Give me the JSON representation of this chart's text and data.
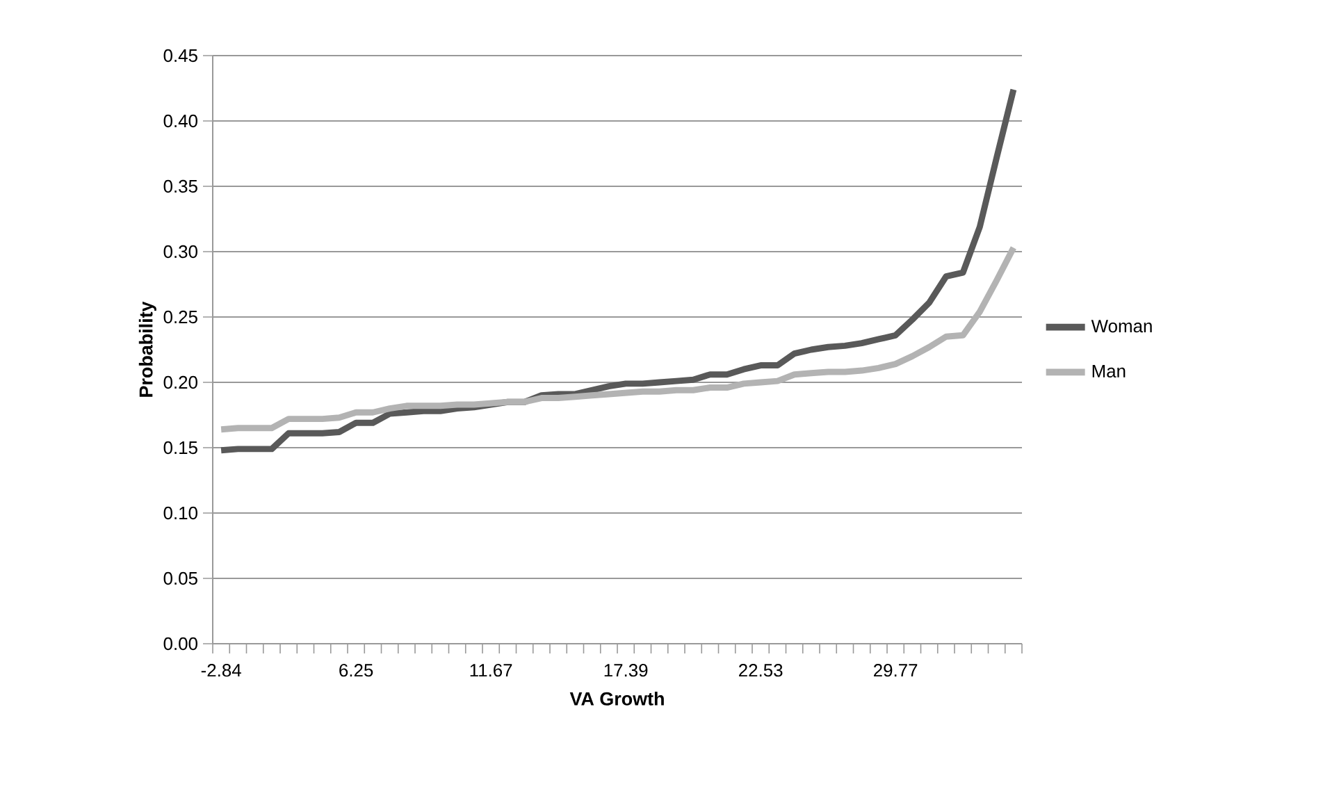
{
  "chart_data": {
    "type": "line",
    "xlabel": "VA Growth",
    "ylabel": "Probability",
    "categories": [
      "-2.84",
      null,
      null,
      null,
      null,
      null,
      null,
      null,
      "6.25",
      null,
      null,
      null,
      null,
      null,
      null,
      null,
      "11.67",
      null,
      null,
      null,
      null,
      null,
      null,
      null,
      "17.39",
      null,
      null,
      null,
      null,
      null,
      null,
      null,
      "22.53",
      null,
      null,
      null,
      null,
      null,
      null,
      null,
      "29.77",
      null,
      null,
      null,
      null,
      null,
      null,
      null
    ],
    "series": [
      {
        "name": "Woman",
        "color": "#595959",
        "values": [
          0.148,
          0.149,
          0.149,
          0.149,
          0.161,
          0.161,
          0.161,
          0.162,
          0.169,
          0.169,
          0.176,
          0.177,
          0.178,
          0.178,
          0.18,
          0.181,
          0.183,
          0.185,
          0.185,
          0.19,
          0.191,
          0.191,
          0.194,
          0.197,
          0.199,
          0.199,
          0.2,
          0.201,
          0.202,
          0.206,
          0.206,
          0.21,
          0.213,
          0.213,
          0.222,
          0.225,
          0.227,
          0.228,
          0.23,
          0.233,
          0.236,
          0.248,
          0.261,
          0.281,
          0.284,
          0.319,
          0.372,
          0.424
        ]
      },
      {
        "name": "Man",
        "color": "#b3b3b3",
        "values": [
          0.164,
          0.165,
          0.165,
          0.165,
          0.172,
          0.172,
          0.172,
          0.173,
          0.177,
          0.177,
          0.18,
          0.182,
          0.182,
          0.182,
          0.183,
          0.183,
          0.184,
          0.185,
          0.185,
          0.188,
          0.188,
          0.189,
          0.19,
          0.191,
          0.192,
          0.193,
          0.193,
          0.194,
          0.194,
          0.196,
          0.196,
          0.199,
          0.2,
          0.201,
          0.206,
          0.207,
          0.208,
          0.208,
          0.209,
          0.211,
          0.214,
          0.22,
          0.227,
          0.235,
          0.236,
          0.254,
          0.278,
          0.303
        ]
      }
    ],
    "ylim": [
      0,
      0.45
    ],
    "yticks": [
      {
        "value": 0,
        "label": "0.00"
      },
      {
        "value": 0.05,
        "label": "0.05"
      },
      {
        "value": 0.1,
        "label": "0.10"
      },
      {
        "value": 0.15,
        "label": "0.15"
      },
      {
        "value": 0.2,
        "label": "0.20"
      },
      {
        "value": 0.25,
        "label": "0.25"
      },
      {
        "value": 0.3,
        "label": "0.30"
      },
      {
        "value": 0.35,
        "label": "0.35"
      },
      {
        "value": 0.4,
        "label": "0.40"
      },
      {
        "value": 0.45,
        "label": "0.45"
      }
    ],
    "grid": "y",
    "legend": "right",
    "marker": "none",
    "line_style": "solid"
  }
}
